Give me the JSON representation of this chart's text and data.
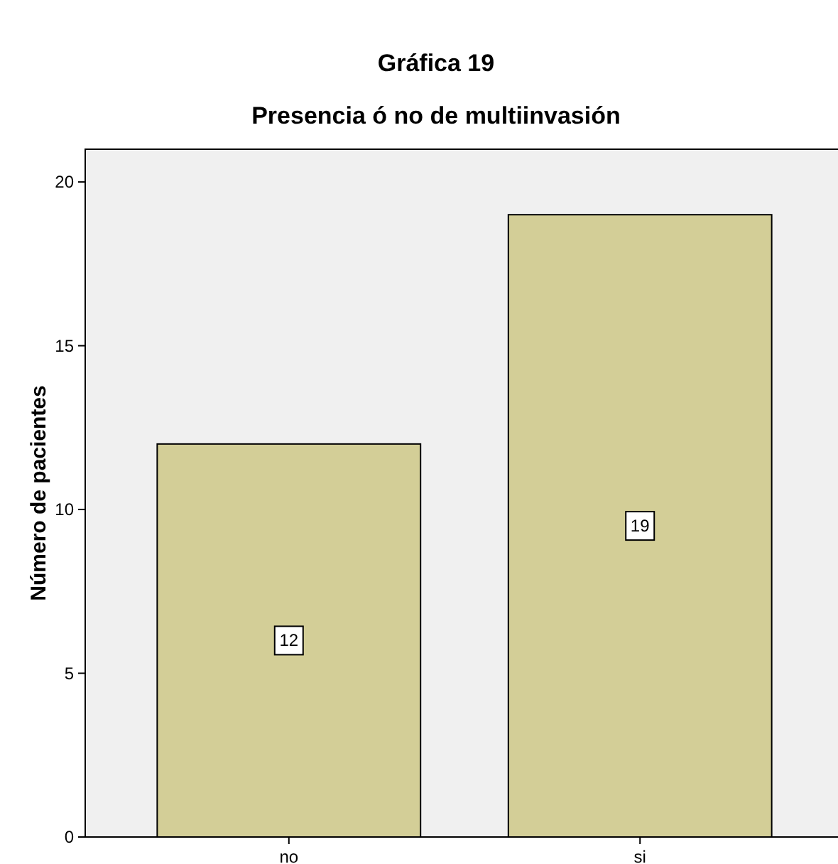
{
  "chart_data": {
    "type": "bar",
    "title": "Gráfica 19",
    "subtitle": "Presencia ó no de multiinvasión",
    "ylabel": "Número de pacientes",
    "categories": [
      "no",
      "si"
    ],
    "values": [
      12,
      19
    ],
    "color": "#d3ce97",
    "ylim": [
      0,
      21
    ],
    "yticks": [
      0,
      5,
      10,
      15,
      20
    ],
    "data_labels": true
  }
}
